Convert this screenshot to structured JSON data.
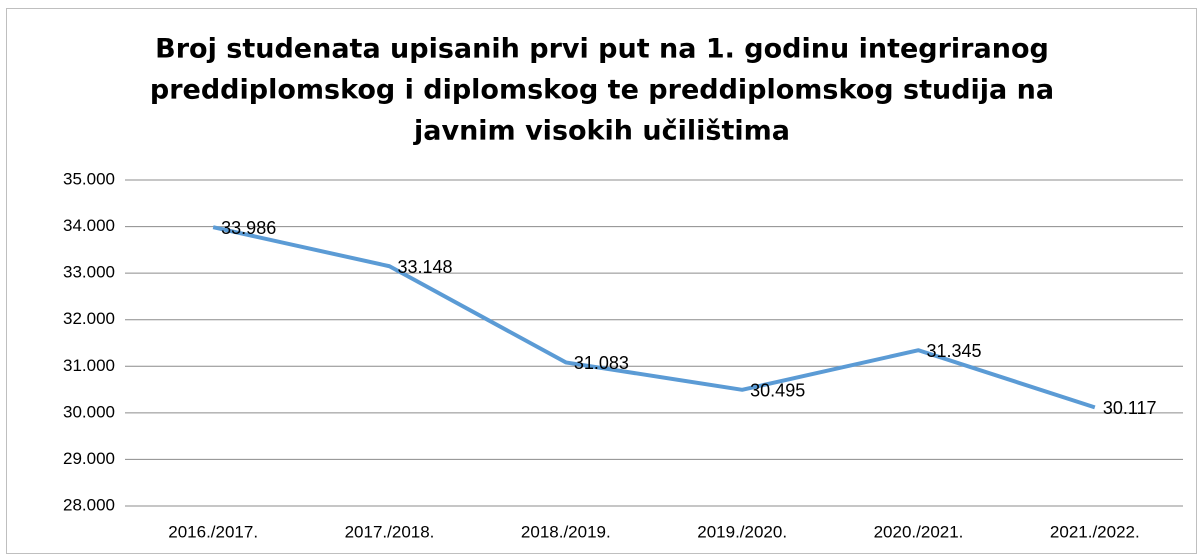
{
  "chart_data": {
    "type": "line",
    "title": [
      "Broj studenata upisanih prvi put na 1. godinu integriranog",
      "preddiplomskog i diplomskog te preddiplomskog studija na",
      "javnim visokih učilištima"
    ],
    "categories": [
      "2016./2017.",
      "2017./2018.",
      "2018./2019.",
      "2019./2020.",
      "2020./2021.",
      "2021./2022."
    ],
    "values": [
      33986,
      33148,
      31083,
      30495,
      31345,
      30117
    ],
    "value_labels": [
      "33.986",
      "33.148",
      "31.083",
      "30.495",
      "31.345",
      "30.117"
    ],
    "color": "#5b9bd5",
    "ylim": [
      28000,
      35000
    ],
    "yticks": [
      {
        "value": 28000,
        "label": "28.000"
      },
      {
        "value": 29000,
        "label": "29.000"
      },
      {
        "value": 30000,
        "label": "30.000"
      },
      {
        "value": 31000,
        "label": "31.000"
      },
      {
        "value": 32000,
        "label": "32.000"
      },
      {
        "value": 33000,
        "label": "33.000"
      },
      {
        "value": 34000,
        "label": "34.000"
      },
      {
        "value": 35000,
        "label": "35.000"
      }
    ],
    "grid": true
  }
}
